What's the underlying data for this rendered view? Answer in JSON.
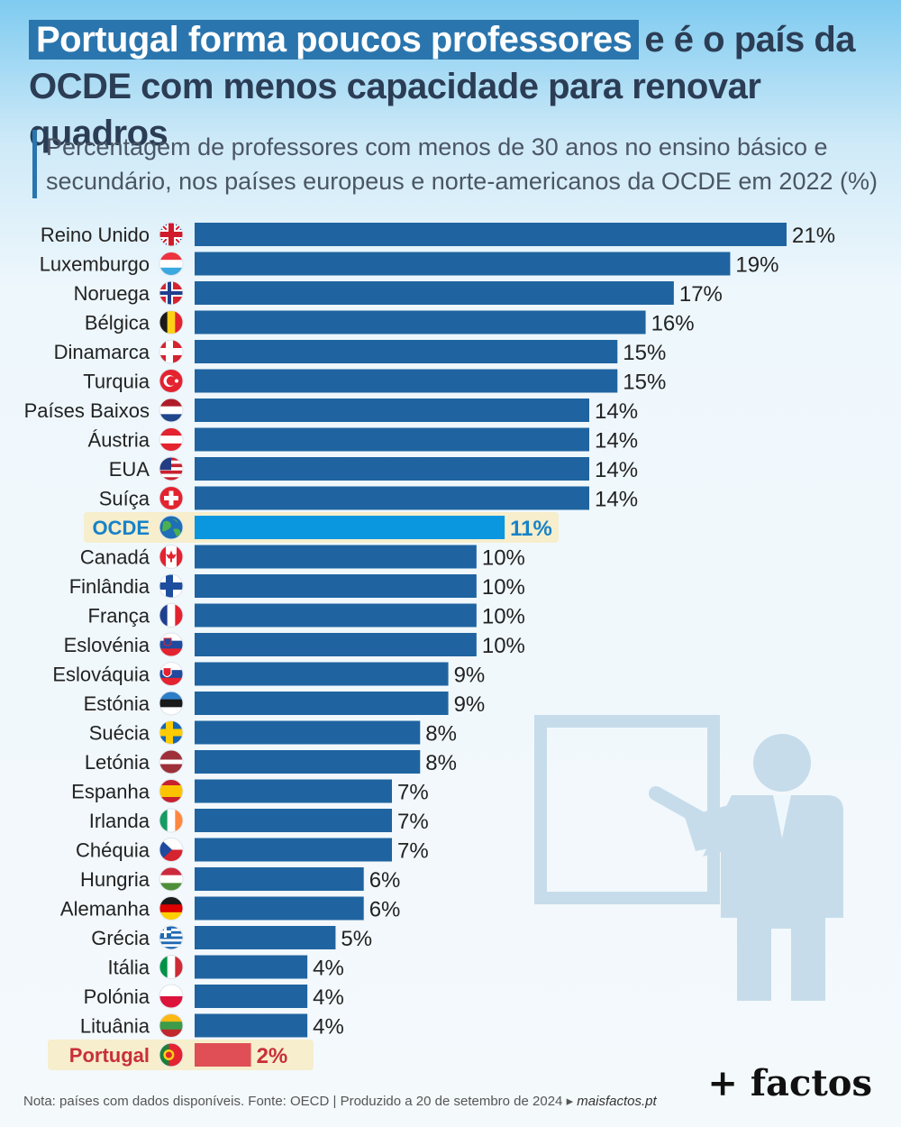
{
  "header": {
    "title_highlight": "Portugal forma poucos professores",
    "title_rest": "e é o país da OCDE com menos capacidade para renovar quadros",
    "subtitle": "Percentagem de professores com menos de 30 anos no ensino básico e secundário, nos países europeus e norte-americanos da OCDE em 2022 (%)"
  },
  "footer": {
    "note": "Nota: países com dados disponíveis. Fonte: OECD | Produzido a 20 de setembro de 2024 ▸ ",
    "brand_url": "maisfactos.pt",
    "logo": "+ factos"
  },
  "colors": {
    "bar": "#1f64a0",
    "oecd_bar": "#0b96e0",
    "portugal_bar": "#df4f55",
    "highlight_bg": "#f6eecc",
    "illustration": "#c6dcea"
  },
  "chart_data": {
    "type": "bar",
    "orientation": "horizontal",
    "xlim": [
      0,
      21
    ],
    "unit": "%",
    "categories": [
      "Reino Unido",
      "Luxemburgo",
      "Noruega",
      "Bélgica",
      "Dinamarca",
      "Turquia",
      "Países Baixos",
      "Áustria",
      "EUA",
      "Suíça",
      "OCDE",
      "Canadá",
      "Finlândia",
      "França",
      "Eslovénia",
      "Eslováquia",
      "Estónia",
      "Suécia",
      "Letónia",
      "Espanha",
      "Irlanda",
      "Chéquia",
      "Hungria",
      "Alemanha",
      "Grécia",
      "Itália",
      "Polónia",
      "Lituânia",
      "Portugal"
    ],
    "values": [
      21,
      19,
      17,
      16,
      15,
      15,
      14,
      14,
      14,
      14,
      11,
      10,
      10,
      10,
      10,
      9,
      9,
      8,
      8,
      7,
      7,
      7,
      6,
      6,
      5,
      4,
      4,
      4,
      2
    ],
    "labels": [
      "21%",
      "19%",
      "17%",
      "16%",
      "15%",
      "15%",
      "14%",
      "14%",
      "14%",
      "14%",
      "11%",
      "10%",
      "10%",
      "10%",
      "10%",
      "9%",
      "9%",
      "8%",
      "8%",
      "7%",
      "7%",
      "7%",
      "6%",
      "6%",
      "5%",
      "4%",
      "4%",
      "4%",
      "2%"
    ],
    "highlight": {
      "OCDE": "oecd",
      "Portugal": "portugal"
    },
    "flags": [
      "gb-flag-icon",
      "lu-flag-icon",
      "no-flag-icon",
      "be-flag-icon",
      "dk-flag-icon",
      "tr-flag-icon",
      "nl-flag-icon",
      "at-flag-icon",
      "us-flag-icon",
      "ch-flag-icon",
      "globe-icon",
      "ca-flag-icon",
      "fi-flag-icon",
      "fr-flag-icon",
      "si-flag-icon",
      "sk-flag-icon",
      "ee-flag-icon",
      "se-flag-icon",
      "lv-flag-icon",
      "es-flag-icon",
      "ie-flag-icon",
      "cz-flag-icon",
      "hu-flag-icon",
      "de-flag-icon",
      "gr-flag-icon",
      "it-flag-icon",
      "pl-flag-icon",
      "lt-flag-icon",
      "pt-flag-icon"
    ],
    "grid": false,
    "legend": "none"
  }
}
